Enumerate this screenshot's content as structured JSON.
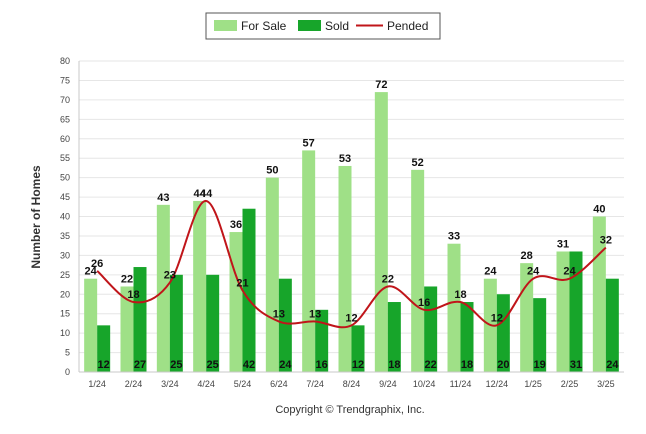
{
  "chart_data": {
    "type": "bar",
    "categories": [
      "1/24",
      "2/24",
      "3/24",
      "4/24",
      "5/24",
      "6/24",
      "7/24",
      "8/24",
      "9/24",
      "10/24",
      "11/24",
      "12/24",
      "1/25",
      "2/25",
      "3/25"
    ],
    "series": [
      {
        "name": "For Sale",
        "kind": "bar",
        "color": "#9fe087",
        "values": [
          24,
          22,
          43,
          44,
          36,
          50,
          57,
          53,
          72,
          52,
          33,
          24,
          28,
          31,
          40
        ]
      },
      {
        "name": "Sold",
        "kind": "bar",
        "color": "#17a52a",
        "values": [
          12,
          27,
          25,
          25,
          42,
          24,
          16,
          12,
          18,
          22,
          18,
          20,
          19,
          31,
          24
        ]
      },
      {
        "name": "Pended",
        "kind": "line",
        "color": "#c0151a",
        "values": [
          26,
          18,
          23,
          44,
          21,
          13,
          13,
          12,
          22,
          16,
          18,
          12,
          24,
          24,
          32
        ]
      }
    ],
    "title": "",
    "xlabel": "",
    "ylabel": "Number of Homes",
    "ylim": [
      0,
      80
    ],
    "yticks": [
      0,
      5,
      10,
      15,
      20,
      25,
      30,
      35,
      40,
      45,
      50,
      55,
      60,
      65,
      70,
      75,
      80
    ],
    "grid": true,
    "legend_position": "top-center"
  },
  "footer": {
    "copyright": "Copyright © Trendgraphix, Inc."
  }
}
